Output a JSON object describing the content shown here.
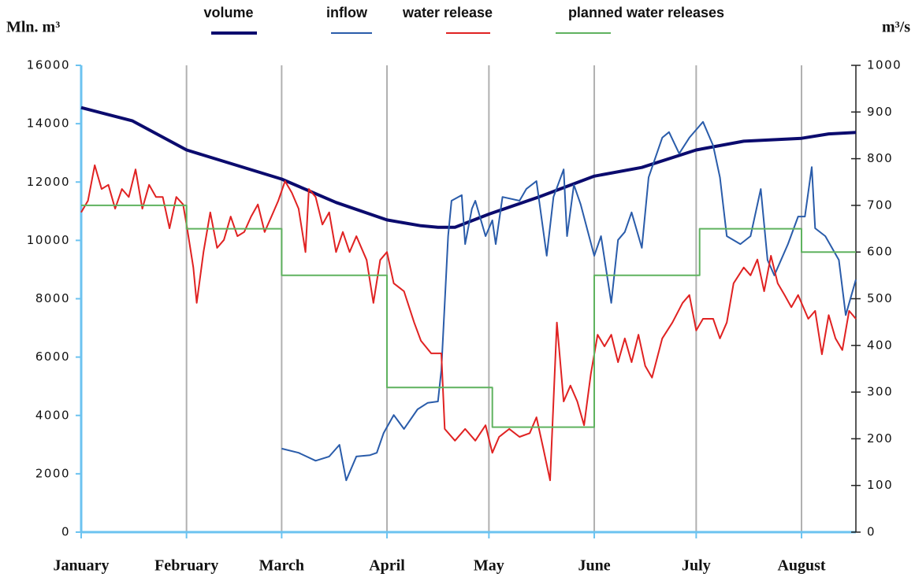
{
  "chart_data": {
    "type": "line",
    "y_label": "Mln. m³",
    "y2_label": "m³/s",
    "xlim": [
      0,
      228
    ],
    "xticks": [
      {
        "value": 0,
        "label": "January"
      },
      {
        "value": 31,
        "label": "February"
      },
      {
        "value": 59,
        "label": "March"
      },
      {
        "value": 90,
        "label": "April"
      },
      {
        "value": 120,
        "label": "May"
      },
      {
        "value": 151,
        "label": "June"
      },
      {
        "value": 181,
        "label": "July"
      },
      {
        "value": 212,
        "label": "August"
      }
    ],
    "ylim": [
      0,
      16000
    ],
    "yticks": [
      0,
      2000,
      4000,
      6000,
      8000,
      10000,
      12000,
      14000,
      16000
    ],
    "y2lim": [
      0,
      1000
    ],
    "y2ticks": [
      0,
      100,
      200,
      300,
      400,
      500,
      600,
      700,
      800,
      900,
      1000
    ],
    "grid": "x",
    "series": [
      {
        "name": "volume",
        "color": "#0b0b6e",
        "axis": "y",
        "x": [
          0,
          15,
          31,
          45,
          59,
          75,
          90,
          100,
          105,
          110,
          120,
          135,
          151,
          165,
          181,
          195,
          212,
          220,
          228
        ],
        "values": [
          14550,
          14100,
          13100,
          12600,
          12100,
          11300,
          10700,
          10500,
          10450,
          10450,
          10900,
          11500,
          12200,
          12500,
          13100,
          13400,
          13500,
          13650,
          13700
        ]
      },
      {
        "name": "inflow",
        "color": "#2a5caa",
        "axis": "y2",
        "x": [
          59,
          64,
          69,
          73,
          76,
          78,
          81,
          85,
          87,
          89,
          92,
          95,
          99,
          102,
          105,
          106,
          108,
          109,
          112,
          113,
          115,
          116,
          119,
          121,
          122,
          124,
          129,
          131,
          134,
          137,
          139,
          142,
          143,
          145,
          147,
          151,
          153,
          156,
          158,
          160,
          162,
          165,
          167,
          171,
          173,
          176,
          179,
          183,
          186,
          188,
          190,
          194,
          197,
          200,
          202,
          204,
          208,
          211,
          213,
          215,
          216,
          219,
          223,
          225,
          228
        ],
        "values": [
          179,
          170,
          153,
          162,
          187,
          111,
          162,
          165,
          170,
          212,
          251,
          221,
          263,
          277,
          280,
          347,
          634,
          710,
          722,
          617,
          693,
          710,
          634,
          668,
          617,
          718,
          710,
          735,
          752,
          592,
          718,
          777,
          634,
          744,
          702,
          592,
          634,
          491,
          626,
          643,
          685,
          609,
          760,
          845,
          857,
          811,
          845,
          879,
          828,
          760,
          634,
          617,
          634,
          735,
          583,
          550,
          617,
          676,
          676,
          782,
          651,
          634,
          583,
          465,
          541
        ]
      },
      {
        "name": "water release",
        "color": "#e02222",
        "axis": "y2",
        "x": [
          0,
          2,
          4,
          6,
          8,
          10,
          12,
          14,
          16,
          18,
          20,
          22,
          24,
          26,
          28,
          30,
          31,
          33,
          34,
          36,
          38,
          40,
          42,
          44,
          46,
          48,
          50,
          52,
          54,
          56,
          58,
          60,
          62,
          64,
          66,
          67,
          69,
          71,
          73,
          75,
          77,
          79,
          81,
          84,
          86,
          88,
          90,
          92,
          95,
          98,
          100,
          103,
          106,
          107,
          110,
          113,
          116,
          119,
          121,
          123,
          126,
          129,
          132,
          134,
          136,
          138,
          140,
          142,
          144,
          146,
          148,
          150,
          152,
          154,
          156,
          158,
          160,
          162,
          164,
          166,
          168,
          171,
          174,
          177,
          179,
          181,
          183,
          186,
          188,
          190,
          192,
          195,
          197,
          199,
          201,
          203,
          205,
          207,
          209,
          211,
          214,
          216,
          218,
          220,
          222,
          224,
          226,
          228
        ],
        "values": [
          685,
          710,
          786,
          735,
          744,
          693,
          735,
          718,
          777,
          693,
          744,
          718,
          718,
          651,
          718,
          702,
          659,
          567,
          491,
          600,
          685,
          609,
          626,
          676,
          634,
          643,
          676,
          702,
          643,
          676,
          710,
          752,
          727,
          693,
          600,
          735,
          718,
          659,
          685,
          600,
          643,
          600,
          634,
          583,
          491,
          583,
          600,
          533,
          516,
          449,
          410,
          383,
          383,
          221,
          196,
          221,
          196,
          229,
          170,
          204,
          221,
          204,
          212,
          246,
          179,
          111,
          449,
          280,
          314,
          280,
          229,
          339,
          423,
          398,
          423,
          364,
          415,
          364,
          423,
          356,
          331,
          415,
          449,
          491,
          508,
          432,
          457,
          457,
          415,
          449,
          533,
          567,
          550,
          584,
          516,
          592,
          533,
          508,
          482,
          508,
          457,
          474,
          381,
          465,
          415,
          390,
          474,
          457
        ]
      },
      {
        "name": "planned water releases",
        "color": "#5fb25f",
        "axis": "y2",
        "x": [
          0,
          31,
          31,
          59,
          59,
          90,
          90,
          121,
          121,
          151,
          151,
          182,
          182,
          212,
          212,
          228
        ],
        "values": [
          700,
          700,
          650,
          650,
          550,
          550,
          310,
          310,
          225,
          225,
          550,
          550,
          650,
          650,
          600,
          600
        ]
      }
    ]
  }
}
